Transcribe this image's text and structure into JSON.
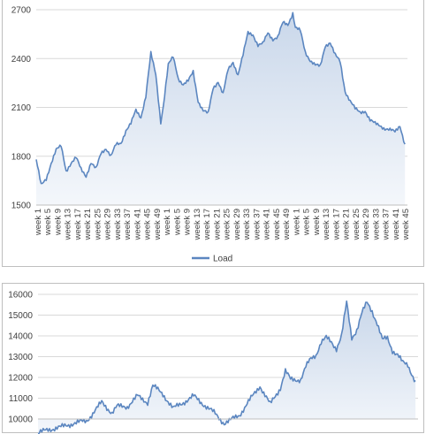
{
  "colors": {
    "line": "#5b86c0",
    "fill_top": "#c9d7ea",
    "fill_bottom": "#f4f7fb",
    "grid": "#d9d9d9"
  },
  "chart_data": [
    {
      "type": "area",
      "legend": [
        "Load"
      ],
      "legend_position": "bottom",
      "grid": true,
      "ylim": [
        1500,
        2700
      ],
      "yticks": [
        1500,
        1800,
        2100,
        2400,
        2700
      ],
      "ytick_labels": [
        "1500",
        "1800",
        "2100",
        "2400",
        "2700"
      ],
      "xtick_labels": [
        "week 1",
        "week 5",
        "week 9",
        "week 13",
        "week 17",
        "week 21",
        "week 25",
        "week 29",
        "week 33",
        "week 37",
        "week 41",
        "week 45",
        "week 49",
        "week 1",
        "week 5",
        "week 9",
        "week 13",
        "week 17",
        "week 21",
        "week 25",
        "week 29",
        "week 33",
        "week 37",
        "week 41",
        "week 45",
        "week 49",
        "week 1",
        "week 5",
        "week 9",
        "week 13",
        "week 17",
        "week 21",
        "week 25",
        "week 29",
        "week 33",
        "week 37",
        "week 41",
        "week 45"
      ],
      "series": [
        {
          "name": "Load",
          "x_weeks": [
            1,
            3,
            5,
            7,
            9,
            11,
            13,
            15,
            17,
            19,
            21,
            23,
            25,
            27,
            29,
            31,
            33,
            35,
            37,
            39,
            41,
            43,
            45,
            47,
            49,
            51,
            52,
            54,
            56,
            58,
            60,
            62,
            64,
            66,
            68,
            70,
            72,
            74,
            76,
            78,
            80,
            82,
            84,
            86,
            88,
            90,
            92,
            94,
            96,
            98,
            100,
            102,
            104,
            105,
            107,
            109,
            111,
            113,
            115,
            117,
            119,
            121,
            123,
            125,
            127,
            129,
            131,
            133,
            135,
            137,
            139,
            141,
            143,
            145,
            147,
            149
          ],
          "values": [
            1780,
            1620,
            1660,
            1760,
            1840,
            1860,
            1710,
            1760,
            1790,
            1720,
            1680,
            1760,
            1720,
            1820,
            1850,
            1800,
            1870,
            1880,
            1960,
            2000,
            2080,
            2040,
            2170,
            2430,
            2300,
            2010,
            2110,
            2360,
            2410,
            2280,
            2240,
            2260,
            2320,
            2140,
            2080,
            2060,
            2220,
            2260,
            2180,
            2330,
            2380,
            2300,
            2420,
            2560,
            2550,
            2480,
            2490,
            2560,
            2520,
            2530,
            2620,
            2610,
            2680,
            2590,
            2570,
            2440,
            2390,
            2360,
            2350,
            2480,
            2500,
            2420,
            2380,
            2200,
            2140,
            2090,
            2070,
            2080,
            2020,
            2000,
            1990,
            1970,
            1960,
            1950,
            1990,
            1870
          ]
        }
      ]
    },
    {
      "type": "area",
      "grid": true,
      "ylim": [
        10000,
        16000
      ],
      "yticks": [
        10000,
        11000,
        12000,
        13000,
        14000,
        15000,
        16000
      ],
      "ytick_labels": [
        "10000",
        "11000",
        "12000",
        "13000",
        "14000",
        "15000",
        "16000"
      ],
      "series": [
        {
          "x_weeks": [
            1,
            5,
            10,
            15,
            20,
            24,
            26,
            30,
            32,
            36,
            40,
            44,
            46,
            50,
            54,
            58,
            62,
            66,
            70,
            74,
            76,
            80,
            84,
            88,
            92,
            96,
            98,
            100,
            104,
            106,
            108,
            110,
            112,
            114,
            116,
            118,
            120,
            122,
            124,
            126,
            128,
            130,
            132,
            134,
            136,
            138,
            140,
            142,
            144,
            146,
            149
          ],
          "values": [
            9300,
            9500,
            9600,
            9800,
            9900,
            10500,
            10800,
            10300,
            10600,
            10600,
            11100,
            10800,
            11600,
            11200,
            10500,
            10800,
            11100,
            10700,
            10300,
            9800,
            9900,
            10200,
            10900,
            11600,
            10700,
            11500,
            12300,
            11900,
            11900,
            12500,
            12900,
            13100,
            13700,
            13900,
            13700,
            13400,
            14000,
            15600,
            13900,
            14300,
            15100,
            15600,
            15200,
            14600,
            13800,
            13900,
            13300,
            13100,
            12700,
            12600,
            11800
          ]
        }
      ]
    }
  ]
}
